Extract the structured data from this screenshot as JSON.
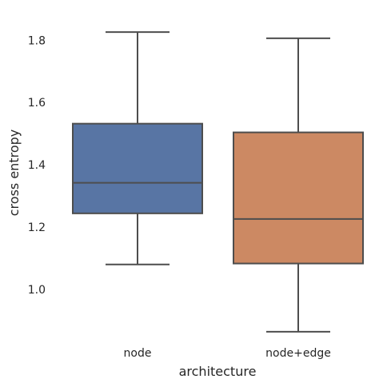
{
  "chart_data": {
    "type": "box",
    "xlabel": "architecture",
    "ylabel": "cross entropy",
    "categories": [
      "node",
      "node+edge"
    ],
    "boxes": [
      {
        "category": "node",
        "whisker_low": 1.08,
        "q1": 1.244,
        "median": 1.342,
        "q3": 1.532,
        "whisker_high": 1.826,
        "color": "#5875a4"
      },
      {
        "category": "node+edge",
        "whisker_low": 0.864,
        "q1": 1.083,
        "median": 1.226,
        "q3": 1.504,
        "whisker_high": 1.806,
        "color": "#cc8963"
      }
    ],
    "yticks": [
      1.0,
      1.2,
      1.4,
      1.6,
      1.8
    ],
    "ytick_labels": [
      "1.0",
      "1.2",
      "1.4",
      "1.6",
      "1.8"
    ],
    "ylim": [
      0.82,
      1.87
    ],
    "grid": false,
    "line_color": "#4d4d4d"
  }
}
